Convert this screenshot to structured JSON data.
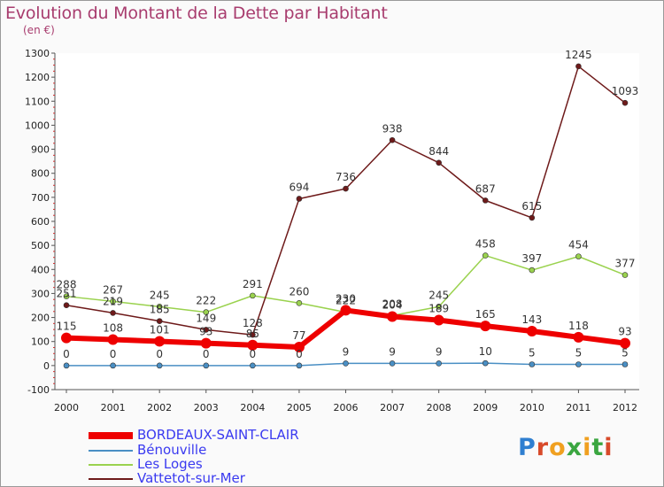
{
  "title": "Evolution du Montant de la Dette par Habitant",
  "unit": "(en €)",
  "logo": "Proxiti",
  "chart_data": {
    "type": "line",
    "title": "Evolution du Montant de la Dette par Habitant",
    "ylabel": "(en €)",
    "xlabel": "",
    "x": [
      2000,
      2001,
      2002,
      2003,
      2004,
      2005,
      2006,
      2007,
      2008,
      2009,
      2010,
      2011,
      2012
    ],
    "ylim": [
      -100,
      1300
    ],
    "yticks": [
      -100,
      0,
      100,
      200,
      300,
      400,
      500,
      600,
      700,
      800,
      900,
      1000,
      1100,
      1200,
      1300
    ],
    "grid": false,
    "legend_position": "bottom-left",
    "series": [
      {
        "name": "BORDEAUX-SAINT-CLAIR",
        "color": "#ee0000",
        "values": [
          115,
          108,
          101,
          93,
          85,
          77,
          230,
          204,
          189,
          165,
          143,
          118,
          93
        ]
      },
      {
        "name": "Bénouville",
        "color": "#4a8fc4",
        "values": [
          0,
          0,
          0,
          0,
          0,
          0,
          9,
          9,
          9,
          10,
          5,
          5,
          5
        ]
      },
      {
        "name": "Les Loges",
        "color": "#9ad24e",
        "values": [
          288,
          267,
          245,
          222,
          291,
          260,
          222,
          208,
          245,
          458,
          397,
          454,
          377
        ]
      },
      {
        "name": "Vattetot-sur-Mer",
        "color": "#6e1a1a",
        "values": [
          251,
          219,
          185,
          149,
          128,
          694,
          736,
          938,
          844,
          687,
          615,
          1245,
          1093
        ]
      }
    ]
  }
}
